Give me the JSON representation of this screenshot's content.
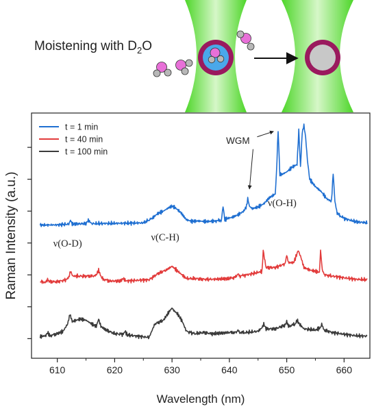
{
  "schematic": {
    "caption_main": "Moistening with D",
    "caption_sub": "2",
    "caption_end": "O",
    "colors": {
      "beam": "#6fe04a",
      "shell": "#9a1a5e",
      "core_wet": "#4aa8ea",
      "core_dry": "#c8c8c8",
      "oxygen": "#e870d8",
      "deuterium": "#b8b8b8"
    }
  },
  "chart_data": {
    "type": "line",
    "xlabel": "Wavelength (nm)",
    "ylabel": "Raman Intensity (a.u.)",
    "xlim": [
      605.5,
      664.5
    ],
    "ylim": [
      0,
      1
    ],
    "x_ticks": [
      610,
      620,
      630,
      640,
      650,
      660
    ],
    "y_ticks": [
      0.08,
      0.21,
      0.34,
      0.47,
      0.6,
      0.73,
      0.86
    ],
    "show_y_tick_labels": false,
    "grid": false,
    "legend_position": "top-left",
    "series": [
      {
        "name": "t = 1 min",
        "color": "#1f6fd1",
        "offset": 0.53,
        "x": [
          607,
          610,
          612,
          612.3,
          612.6,
          613,
          615,
          615.4,
          616,
          620,
          625,
          626.5,
          627.5,
          628.5,
          629.5,
          630,
          630.5,
          631.5,
          632.5,
          633.5,
          634.5,
          635.5,
          636.5,
          637.5,
          638.6,
          638.9,
          639.2,
          639.6,
          640.5,
          641.5,
          642.5,
          643,
          643.2,
          643.5,
          644,
          645,
          646,
          647,
          648,
          648.2,
          648.5,
          648.8,
          649.2,
          650,
          651,
          651.8,
          652.1,
          652.4,
          652.7,
          653,
          653.3,
          653.6,
          654,
          655,
          656,
          657,
          657.8,
          658.1,
          658.4,
          658.8,
          660,
          662,
          664
        ],
        "y": [
          0.013,
          0.014,
          0.017,
          0.033,
          0.017,
          0.018,
          0.019,
          0.033,
          0.019,
          0.02,
          0.022,
          0.04,
          0.06,
          0.07,
          0.085,
          0.09,
          0.085,
          0.065,
          0.035,
          0.028,
          0.03,
          0.028,
          0.028,
          0.03,
          0.032,
          0.09,
          0.035,
          0.04,
          0.045,
          0.055,
          0.07,
          0.09,
          0.122,
          0.09,
          0.08,
          0.087,
          0.1,
          0.125,
          0.14,
          0.22,
          0.4,
          0.22,
          0.22,
          0.23,
          0.25,
          0.26,
          0.4,
          0.25,
          0.39,
          0.42,
          0.37,
          0.28,
          0.2,
          0.17,
          0.15,
          0.12,
          0.11,
          0.225,
          0.11,
          0.06,
          0.04,
          0.027,
          0.022
        ]
      },
      {
        "name": "t = 40 min",
        "color": "#e23b3b",
        "offset": 0.3,
        "x": [
          607,
          608.1,
          608.3,
          608.6,
          610,
          611.5,
          612,
          612.3,
          612.7,
          613.5,
          615,
          616.3,
          616.8,
          617.2,
          617.5,
          617.8,
          619,
          621,
          621.5,
          622,
          624,
          626,
          627.5,
          629,
          630,
          630.5,
          631.5,
          632.5,
          634,
          635.5,
          637,
          640,
          641.2,
          641.5,
          641.8,
          643,
          645,
          645.7,
          645.9,
          646.1,
          646.4,
          648,
          649.7,
          650,
          650.3,
          651.2,
          651.7,
          652,
          652.5,
          653,
          654,
          655,
          655.7,
          655.9,
          656.2,
          656.6,
          658,
          660,
          662,
          664
        ],
        "y": [
          0.01,
          0.012,
          0.022,
          0.012,
          0.012,
          0.02,
          0.03,
          0.055,
          0.035,
          0.035,
          0.035,
          0.035,
          0.04,
          0.06,
          0.04,
          0.025,
          0.015,
          0.015,
          0.025,
          0.015,
          0.018,
          0.02,
          0.045,
          0.06,
          0.075,
          0.065,
          0.045,
          0.025,
          0.025,
          0.022,
          0.022,
          0.025,
          0.032,
          0.045,
          0.035,
          0.04,
          0.05,
          0.055,
          0.14,
          0.11,
          0.07,
          0.07,
          0.085,
          0.12,
          0.09,
          0.09,
          0.12,
          0.14,
          0.11,
          0.07,
          0.06,
          0.055,
          0.05,
          0.14,
          0.06,
          0.04,
          0.035,
          0.028,
          0.022,
          0.02
        ]
      },
      {
        "name": "t = 100 min",
        "color": "#3a3a3a",
        "offset": 0.08,
        "x": [
          607,
          608,
          608.3,
          608.7,
          610,
          611,
          611.8,
          612.2,
          612.6,
          613.3,
          614,
          615,
          616,
          616.8,
          617.2,
          617.6,
          618.5,
          620,
          621.5,
          621.8,
          622.2,
          624,
          626,
          627,
          628.5,
          629.5,
          630,
          630.3,
          631,
          631.8,
          632.5,
          634,
          635.5,
          637,
          640,
          641.2,
          641.5,
          641.8,
          643,
          645,
          645.7,
          646,
          646.4,
          648,
          649.7,
          650,
          650.3,
          651.5,
          651.8,
          652.2,
          653,
          655,
          655.9,
          656.1,
          656.5,
          658,
          660,
          662,
          664
        ],
        "y": [
          0.008,
          0.012,
          0.025,
          0.012,
          0.02,
          0.03,
          0.06,
          0.1,
          0.07,
          0.075,
          0.08,
          0.075,
          0.06,
          0.05,
          0.08,
          0.05,
          0.035,
          0.02,
          0.018,
          0.03,
          0.015,
          0.01,
          0.005,
          0.06,
          0.075,
          0.11,
          0.125,
          0.115,
          0.1,
          0.07,
          0.03,
          0.02,
          0.025,
          0.02,
          0.025,
          0.025,
          0.035,
          0.025,
          0.025,
          0.03,
          0.045,
          0.06,
          0.04,
          0.04,
          0.055,
          0.07,
          0.05,
          0.06,
          0.075,
          0.06,
          0.04,
          0.035,
          0.045,
          0.06,
          0.035,
          0.025,
          0.018,
          0.012,
          0.01
        ]
      }
    ],
    "annotations": [
      {
        "text": "WGM",
        "x": 641.5,
        "y": 0.875,
        "arrows_to": [
          [
            643.5,
            0.69
          ],
          [
            647.7,
            0.925
          ]
        ]
      },
      {
        "text": "ν(O-D)",
        "x": 611.8,
        "y": 0.455
      },
      {
        "text": "ν(C-H)",
        "x": 628.8,
        "y": 0.48
      },
      {
        "text": "ν(O-H)",
        "x": 649.2,
        "y": 0.62
      }
    ]
  }
}
